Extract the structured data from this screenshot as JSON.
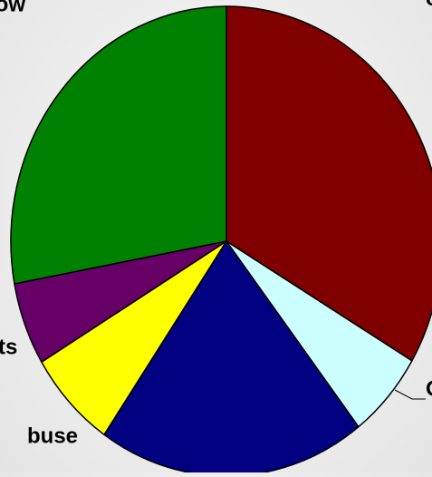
{
  "chart_data": {
    "type": "pie",
    "title": "",
    "start_angle_deg": 0,
    "direction": "clockwise",
    "slices": [
      {
        "label": "",
        "value": 33.5,
        "color": "#800000"
      },
      {
        "label": "O",
        "value": 6.0,
        "color": "#CCFFFF"
      },
      {
        "label": "",
        "value": 20.1,
        "color": "#000080"
      },
      {
        "label": "buse",
        "value": 6.8,
        "color": "#FFFF00"
      },
      {
        "label": "ts",
        "value": 5.7,
        "color": "#660066"
      },
      {
        "label": "low",
        "value": 27.9,
        "color": "#008000"
      }
    ],
    "edge_color": "#000000",
    "legend": "none"
  }
}
